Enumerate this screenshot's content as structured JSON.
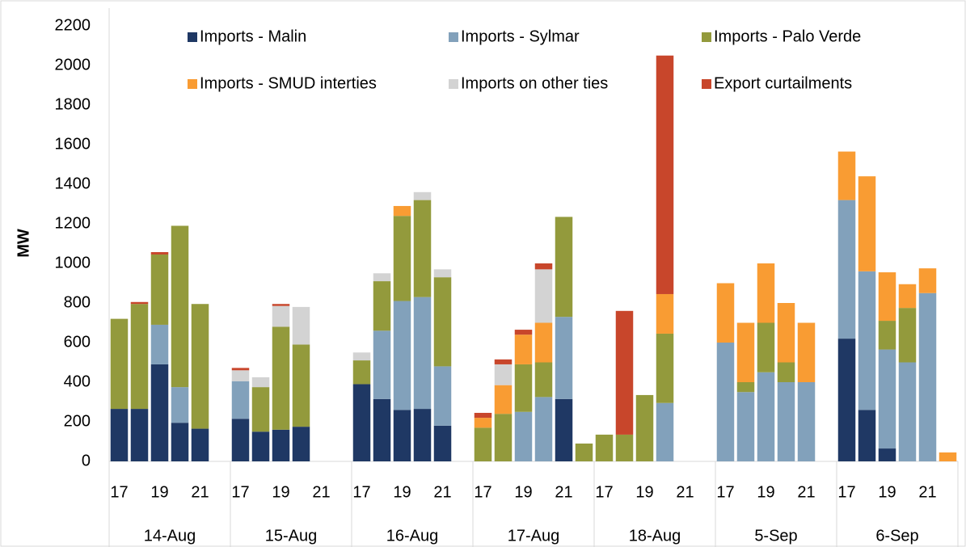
{
  "chart_data": {
    "type": "stacked_bar",
    "ylabel": "MW",
    "ylim": [
      0,
      2200
    ],
    "yticks": [
      0,
      200,
      400,
      600,
      800,
      1000,
      1200,
      1400,
      1600,
      1800,
      2000,
      2200
    ],
    "grid": false,
    "legend": "top",
    "groups": [
      "14-Aug",
      "15-Aug",
      "16-Aug",
      "17-Aug",
      "18-Aug",
      "5-Sep",
      "6-Sep"
    ],
    "categories": [
      "17",
      null,
      "19",
      null,
      "21",
      null,
      "17",
      null,
      "19",
      null,
      "21",
      null,
      "17",
      null,
      "19",
      null,
      "21",
      null,
      "17",
      null,
      "19",
      null,
      "21",
      null,
      "17",
      null,
      "19",
      null,
      "21",
      null,
      "17",
      null,
      "19",
      null,
      "21",
      null,
      "17",
      null,
      "19",
      null,
      "21",
      null
    ],
    "series": [
      {
        "name": "Imports - Malin",
        "color": "#1f3864",
        "values": [
          265,
          265,
          490,
          195,
          165,
          null,
          215,
          150,
          160,
          175,
          null,
          null,
          390,
          315,
          260,
          265,
          180,
          null,
          null,
          null,
          null,
          null,
          315,
          null,
          null,
          null,
          null,
          null,
          null,
          null,
          null,
          null,
          null,
          null,
          null,
          null,
          620,
          260,
          65,
          null,
          null,
          null
        ]
      },
      {
        "name": "Imports - Sylmar",
        "color": "#82a1bb",
        "values": [
          null,
          null,
          200,
          180,
          null,
          null,
          190,
          null,
          null,
          null,
          null,
          null,
          null,
          345,
          550,
          565,
          300,
          null,
          null,
          null,
          250,
          325,
          415,
          null,
          null,
          null,
          null,
          295,
          null,
          null,
          600,
          350,
          450,
          400,
          400,
          null,
          700,
          700,
          500,
          500,
          850,
          null
        ]
      },
      {
        "name": "Imports - Palo Verde",
        "color": "#939a3c",
        "values": [
          455,
          530,
          355,
          815,
          630,
          null,
          null,
          225,
          520,
          415,
          null,
          null,
          120,
          250,
          430,
          490,
          450,
          null,
          170,
          240,
          240,
          175,
          505,
          90,
          135,
          135,
          335,
          350,
          null,
          null,
          null,
          50,
          250,
          100,
          null,
          null,
          null,
          null,
          145,
          275,
          null,
          null
        ]
      },
      {
        "name": "Imports - SMUD interties",
        "color": "#f99c33",
        "values": [
          null,
          null,
          null,
          null,
          null,
          null,
          null,
          null,
          null,
          null,
          null,
          null,
          null,
          null,
          50,
          null,
          null,
          null,
          50,
          145,
          150,
          200,
          null,
          null,
          null,
          null,
          null,
          200,
          null,
          null,
          300,
          300,
          300,
          300,
          300,
          null,
          245,
          480,
          245,
          120,
          125,
          45
        ]
      },
      {
        "name": "Imports on other ties",
        "color": "#d3d3d3",
        "values": [
          null,
          null,
          null,
          null,
          null,
          null,
          55,
          50,
          105,
          190,
          null,
          null,
          40,
          40,
          null,
          40,
          40,
          null,
          null,
          105,
          null,
          270,
          null,
          null,
          null,
          null,
          null,
          null,
          null,
          null,
          null,
          null,
          null,
          null,
          null,
          null,
          null,
          null,
          null,
          null,
          null,
          null
        ]
      },
      {
        "name": "Export curtailments",
        "color": "#c8462b",
        "values": [
          null,
          10,
          12,
          null,
          null,
          null,
          12,
          null,
          10,
          null,
          null,
          null,
          null,
          null,
          null,
          null,
          null,
          null,
          25,
          25,
          25,
          30,
          null,
          null,
          null,
          625,
          null,
          1205,
          null,
          null,
          null,
          null,
          null,
          null,
          null,
          null,
          null,
          null,
          null,
          null,
          null,
          null
        ]
      }
    ]
  }
}
